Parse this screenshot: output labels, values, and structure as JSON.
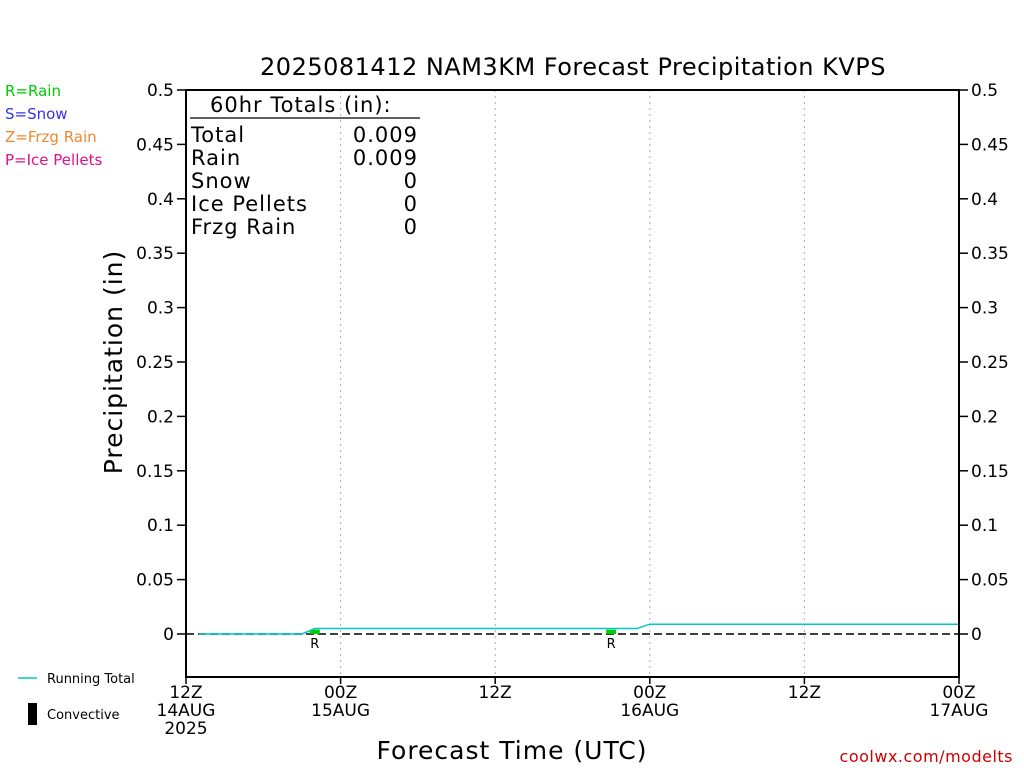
{
  "chart_data": {
    "type": "line",
    "title": "2025081412 NAM3KM Forecast Precipitation KVPS",
    "xlabel": "Forecast Time (UTC)",
    "ylabel": "Precipitation (in)",
    "ylim": [
      -0.04,
      0.5
    ],
    "y_ticks": [
      0,
      0.05,
      0.1,
      0.15,
      0.2,
      0.25,
      0.3,
      0.35,
      0.4,
      0.45,
      0.5
    ],
    "y_tick_labels": [
      "0",
      "0.05",
      "0.1",
      "0.15",
      "0.2",
      "0.25",
      "0.3",
      "0.35",
      "0.4",
      "0.45",
      "0.5"
    ],
    "xlim_hours": [
      0,
      60
    ],
    "x_ticks": [
      {
        "hour": 0,
        "lines": [
          "12Z",
          "14AUG",
          "2025"
        ]
      },
      {
        "hour": 12,
        "lines": [
          "00Z",
          "15AUG"
        ]
      },
      {
        "hour": 24,
        "lines": [
          "12Z"
        ]
      },
      {
        "hour": 36,
        "lines": [
          "00Z",
          "16AUG"
        ]
      },
      {
        "hour": 48,
        "lines": [
          "12Z"
        ]
      },
      {
        "hour": 60,
        "lines": [
          "00Z",
          "17AUG"
        ]
      }
    ],
    "grid": "vertical dotted at 00Z/12Z",
    "series": [
      {
        "name": "Running Total",
        "color": "#00c8c8",
        "x_hours": [
          1,
          9,
          10,
          35,
          36,
          60
        ],
        "values": [
          0,
          0,
          0.005,
          0.005,
          0.009,
          0.009
        ]
      }
    ],
    "precip_bars": [
      {
        "hour": 10,
        "type_code": "R",
        "value": 0.004,
        "color": "#00cc00"
      },
      {
        "hour": 33,
        "type_code": "R",
        "value": 0.004,
        "color": "#00cc00"
      }
    ],
    "totals_box": {
      "header": "60hr Totals (in):",
      "rows": [
        {
          "label": "Total",
          "value": "0.009"
        },
        {
          "label": "Rain",
          "value": "0.009"
        },
        {
          "label": "Snow",
          "value": "0"
        },
        {
          "label": "Ice Pellets",
          "value": "0"
        },
        {
          "label": "Frzg Rain",
          "value": "0"
        }
      ]
    },
    "type_legend": [
      {
        "text": "R=Rain",
        "color": "#00cc00"
      },
      {
        "text": "S=Snow",
        "color": "#3333ee"
      },
      {
        "text": "Z=Frzg Rain",
        "color": "#ee8833"
      },
      {
        "text": "P=Ice Pellets",
        "color": "#dd1188"
      }
    ],
    "line_legend": [
      {
        "text": "Running Total",
        "color": "#00c8c8",
        "kind": "line"
      },
      {
        "text": "Convective",
        "color": "#000000",
        "kind": "bar"
      }
    ],
    "credit": {
      "text": "coolwx.com/modelts",
      "color": "#cc0000"
    }
  }
}
